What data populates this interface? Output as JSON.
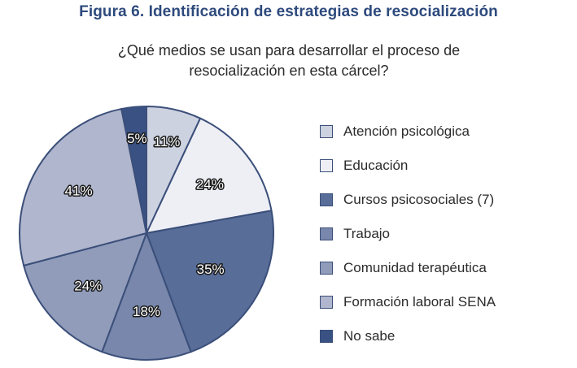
{
  "figure_title": "Figura 6. Identificación de estrategias de resocialización",
  "question": [
    "¿Qué medios se usan para desarrollar el proceso de",
    "resocialización en esta cárcel?"
  ],
  "chart_data": {
    "type": "pie",
    "title": "¿Qué medios se usan para desarrollar el proceso de resocialización en esta cárcel?",
    "legend_position": "right",
    "slices": [
      {
        "label": "Atención psicológica",
        "value": 11,
        "display": "11%",
        "color": "#cdd2e0"
      },
      {
        "label": "Educación",
        "value": 24,
        "display": "24%",
        "color": "#eeeff5"
      },
      {
        "label": "Cursos psicosociales (7)",
        "value": 35,
        "display": "35%",
        "color": "#586d98"
      },
      {
        "label": "Trabajo",
        "value": 18,
        "display": "18%",
        "color": "#7887ab"
      },
      {
        "label": "Comunidad terapéutica",
        "value": 24,
        "display": "24%",
        "color": "#919cba"
      },
      {
        "label": "Formación laboral SENA",
        "value": 41,
        "display": "41%",
        "color": "#b0b6cd"
      },
      {
        "label": "No sabe",
        "value": 5,
        "display": "5%",
        "color": "#3a5183"
      }
    ]
  }
}
